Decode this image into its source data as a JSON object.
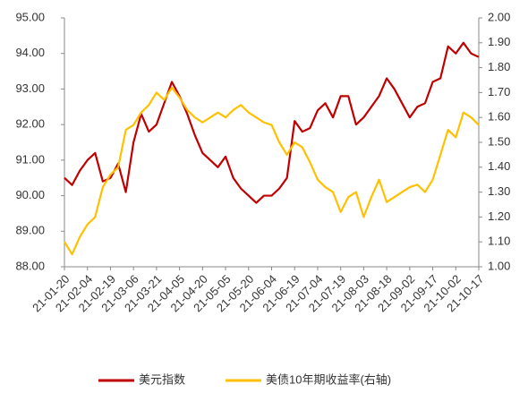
{
  "chart_data": {
    "type": "line",
    "categories": [
      "21-01-20",
      null,
      null,
      "21-02-04",
      null,
      null,
      "21-02-19",
      null,
      null,
      "21-03-06",
      null,
      null,
      "21-03-21",
      null,
      null,
      "21-04-05",
      null,
      null,
      "21-04-20",
      null,
      null,
      "21-05-05",
      null,
      null,
      "21-05-20",
      null,
      null,
      "21-06-04",
      null,
      null,
      "21-06-19",
      null,
      null,
      "21-07-04",
      null,
      null,
      "21-07-19",
      null,
      null,
      "21-08-03",
      null,
      null,
      "21-08-18",
      null,
      null,
      "21-09-02",
      null,
      null,
      "21-09-17",
      null,
      null,
      "21-10-02",
      null,
      null,
      "21-10-17"
    ],
    "series": [
      {
        "name": "美元指数",
        "color": "#c00000",
        "values": [
          90.5,
          90.3,
          90.7,
          91.0,
          91.2,
          90.4,
          90.5,
          90.9,
          90.1,
          91.5,
          92.3,
          91.8,
          92.0,
          92.6,
          93.2,
          92.8,
          92.3,
          91.7,
          91.2,
          91.0,
          90.8,
          91.1,
          90.5,
          90.2,
          90.0,
          89.8,
          90.0,
          90.0,
          90.2,
          90.5,
          92.1,
          91.8,
          91.9,
          92.4,
          92.6,
          92.2,
          92.8,
          92.8,
          92.0,
          92.2,
          92.5,
          92.8,
          93.3,
          93.0,
          92.6,
          92.2,
          92.5,
          92.6,
          93.2,
          93.3,
          94.2,
          94.0,
          94.3,
          94.0,
          93.9
        ]
      },
      {
        "name": "美债10年期收益率(右轴)",
        "color": "#ffc000",
        "axis": "y2",
        "values": [
          1.1,
          1.05,
          1.12,
          1.17,
          1.2,
          1.32,
          1.37,
          1.4,
          1.55,
          1.57,
          1.62,
          1.65,
          1.7,
          1.67,
          1.72,
          1.68,
          1.63,
          1.6,
          1.58,
          1.6,
          1.62,
          1.6,
          1.63,
          1.65,
          1.62,
          1.6,
          1.58,
          1.57,
          1.5,
          1.45,
          1.5,
          1.48,
          1.42,
          1.35,
          1.32,
          1.3,
          1.22,
          1.28,
          1.3,
          1.2,
          1.28,
          1.35,
          1.26,
          1.28,
          1.3,
          1.32,
          1.33,
          1.3,
          1.35,
          1.45,
          1.55,
          1.52,
          1.62,
          1.6,
          1.57
        ]
      }
    ],
    "ylim": [
      88,
      95
    ],
    "yticks": [
      {
        "value": 88,
        "label": "88.00"
      },
      {
        "value": 89,
        "label": "89.00"
      },
      {
        "value": 90,
        "label": "90.00"
      },
      {
        "value": 91,
        "label": "91.00"
      },
      {
        "value": 92,
        "label": "92.00"
      },
      {
        "value": 93,
        "label": "93.00"
      },
      {
        "value": 94,
        "label": "94.00"
      },
      {
        "value": 95,
        "label": "95.00"
      }
    ],
    "y2lim": [
      1.0,
      2.0
    ],
    "y2ticks": [
      {
        "value": 1.0,
        "label": "1.00"
      },
      {
        "value": 1.1,
        "label": "1.10"
      },
      {
        "value": 1.2,
        "label": "1.20"
      },
      {
        "value": 1.3,
        "label": "1.30"
      },
      {
        "value": 1.4,
        "label": "1.40"
      },
      {
        "value": 1.5,
        "label": "1.50"
      },
      {
        "value": 1.6,
        "label": "1.60"
      },
      {
        "value": 1.7,
        "label": "1.70"
      },
      {
        "value": 1.8,
        "label": "1.80"
      },
      {
        "value": 1.9,
        "label": "1.90"
      },
      {
        "value": 2.0,
        "label": "2.00"
      }
    ],
    "grid": false,
    "legend": "bottom"
  }
}
